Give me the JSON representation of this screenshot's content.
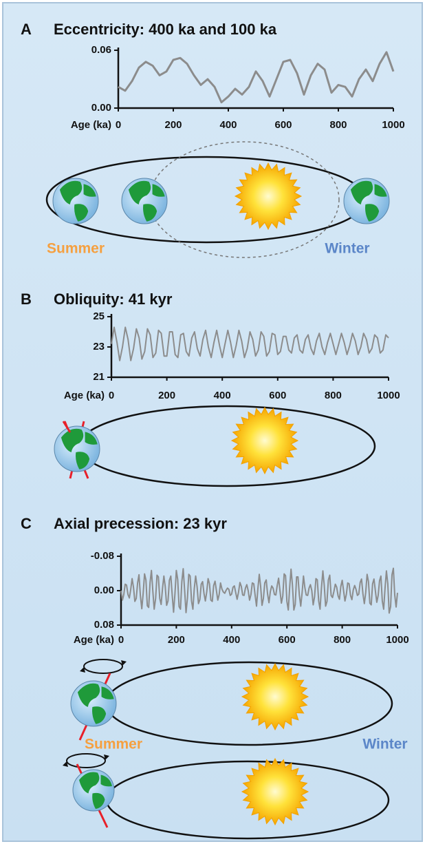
{
  "chart_data": [
    {
      "type": "line",
      "panel": "A",
      "title": "Eccentricity: 400 ka and 100 ka",
      "x_label": "Age (ka)",
      "color": "#8c8c8c",
      "xlim": [
        0,
        1000
      ],
      "xticks": [
        0,
        200,
        400,
        600,
        800,
        1000
      ],
      "ylim": [
        0,
        0.06
      ],
      "yticks": [
        {
          "value": 0,
          "label": "0.00"
        },
        0.06
      ],
      "annotations": [
        "Summer",
        "Winter"
      ],
      "x": [
        0,
        25,
        50,
        75,
        100,
        125,
        150,
        175,
        200,
        225,
        250,
        275,
        300,
        325,
        350,
        375,
        400,
        425,
        450,
        475,
        500,
        525,
        550,
        575,
        600,
        625,
        650,
        675,
        700,
        725,
        750,
        775,
        800,
        825,
        850,
        875,
        900,
        925,
        950,
        975,
        1000
      ],
      "values": [
        0.022,
        0.018,
        0.028,
        0.042,
        0.048,
        0.044,
        0.034,
        0.038,
        0.05,
        0.052,
        0.046,
        0.034,
        0.024,
        0.03,
        0.022,
        0.006,
        0.012,
        0.02,
        0.014,
        0.022,
        0.038,
        0.028,
        0.012,
        0.03,
        0.048,
        0.05,
        0.036,
        0.014,
        0.034,
        0.046,
        0.04,
        0.016,
        0.024,
        0.022,
        0.012,
        0.03,
        0.04,
        0.028,
        0.046,
        0.058,
        0.038
      ]
    },
    {
      "type": "line",
      "panel": "B",
      "title": "Obliquity: 41 kyr",
      "x_label": "Age (ka)",
      "color": "#8c8c8c",
      "xlim": [
        0,
        1000
      ],
      "xticks": [
        0,
        200,
        400,
        600,
        800,
        1000
      ],
      "ylim": [
        21,
        25
      ],
      "yticks": [
        21,
        23,
        25
      ],
      "x": [
        0,
        10,
        20,
        30,
        40,
        50,
        60,
        70,
        80,
        90,
        100,
        110,
        120,
        130,
        140,
        150,
        160,
        170,
        180,
        190,
        200,
        210,
        220,
        230,
        240,
        250,
        260,
        270,
        280,
        290,
        300,
        310,
        320,
        330,
        340,
        350,
        360,
        370,
        380,
        390,
        400,
        410,
        420,
        430,
        440,
        450,
        460,
        470,
        480,
        490,
        500,
        510,
        520,
        530,
        540,
        550,
        560,
        570,
        580,
        590,
        600,
        610,
        620,
        630,
        640,
        650,
        660,
        670,
        680,
        690,
        700,
        710,
        720,
        730,
        740,
        750,
        760,
        770,
        780,
        790,
        800,
        810,
        820,
        830,
        840,
        850,
        860,
        870,
        880,
        890,
        900,
        910,
        920,
        930,
        940,
        950,
        960,
        970,
        980,
        990,
        1000
      ],
      "values": [
        23.2,
        24.3,
        23.3,
        22.1,
        23.0,
        24.3,
        23.5,
        22.1,
        22.9,
        24.2,
        23.6,
        22.2,
        22.7,
        24.2,
        23.8,
        22.3,
        22.6,
        24.1,
        23.9,
        22.4,
        22.4,
        24.0,
        24.0,
        22.5,
        22.3,
        23.8,
        23.9,
        22.7,
        22.4,
        23.6,
        24.0,
        22.9,
        22.4,
        23.5,
        24.1,
        23.0,
        22.3,
        23.3,
        24.1,
        23.1,
        22.3,
        23.2,
        24.1,
        23.3,
        22.3,
        23.1,
        24.1,
        23.4,
        22.3,
        22.9,
        24.0,
        23.5,
        22.4,
        22.8,
        24.0,
        23.7,
        22.4,
        22.7,
        23.9,
        23.8,
        22.5,
        22.7,
        23.7,
        23.7,
        22.8,
        22.6,
        23.6,
        23.8,
        22.8,
        22.6,
        23.5,
        23.8,
        22.9,
        22.5,
        23.4,
        23.9,
        23.0,
        22.5,
        23.3,
        23.9,
        23.2,
        22.5,
        23.2,
        23.9,
        23.3,
        22.5,
        23.1,
        23.9,
        23.4,
        22.5,
        23.0,
        23.9,
        23.5,
        22.6,
        22.9,
        23.8,
        23.6,
        22.6,
        22.8,
        23.8,
        23.6
      ]
    },
    {
      "type": "line",
      "panel": "C",
      "title": "Axial precession: 23 kyr",
      "x_label": "Age (ka)",
      "color": "#8c8c8c",
      "xlim": [
        0,
        1000
      ],
      "xticks": [
        0,
        200,
        400,
        600,
        800,
        1000
      ],
      "ylim": [
        0.08,
        -0.08
      ],
      "yticks": [
        -0.08,
        {
          "value": 0,
          "label": "0.00"
        },
        0.08
      ],
      "annotations": [
        "Summer",
        "Winter"
      ],
      "x": [
        0,
        5,
        10,
        15,
        20,
        25,
        30,
        35,
        40,
        45,
        50,
        55,
        60,
        65,
        70,
        75,
        80,
        85,
        90,
        95,
        100,
        105,
        110,
        115,
        120,
        125,
        130,
        135,
        140,
        145,
        150,
        155,
        160,
        165,
        170,
        175,
        180,
        185,
        190,
        195,
        200,
        205,
        210,
        215,
        220,
        225,
        230,
        235,
        240,
        245,
        250,
        255,
        260,
        265,
        270,
        275,
        280,
        285,
        290,
        295,
        300,
        305,
        310,
        315,
        320,
        325,
        330,
        335,
        340,
        345,
        350,
        355,
        360,
        365,
        370,
        375,
        380,
        385,
        390,
        395,
        400,
        405,
        410,
        415,
        420,
        425,
        430,
        435,
        440,
        445,
        450,
        455,
        460,
        465,
        470,
        475,
        480,
        485,
        490,
        495,
        500,
        505,
        510,
        515,
        520,
        525,
        530,
        535,
        540,
        545,
        550,
        555,
        560,
        565,
        570,
        575,
        580,
        585,
        590,
        595,
        600,
        605,
        610,
        615,
        620,
        625,
        630,
        635,
        640,
        645,
        650,
        655,
        660,
        665,
        670,
        675,
        680,
        685,
        690,
        695,
        700,
        705,
        710,
        715,
        720,
        725,
        730,
        735,
        740,
        745,
        750,
        755,
        760,
        765,
        770,
        775,
        780,
        785,
        790,
        795,
        800,
        805,
        810,
        815,
        820,
        825,
        830,
        835,
        840,
        845,
        850,
        855,
        860,
        865,
        870,
        875,
        880,
        885,
        890,
        895,
        900,
        905,
        910,
        915,
        920,
        925,
        930,
        935,
        940,
        945,
        950,
        955,
        960,
        965,
        970,
        975,
        980,
        985,
        990,
        995,
        1000
      ],
      "values": [
        0,
        0.022,
        0.009,
        -0.015,
        -0.013,
        0.009,
        0.017,
        -0.003,
        -0.028,
        -0.008,
        0.025,
        0.018,
        -0.018,
        -0.037,
        0.011,
        0.042,
        0.006,
        -0.039,
        -0.025,
        0.035,
        0.039,
        -0.019,
        -0.047,
        0,
        0.043,
        0.018,
        -0.036,
        -0.032,
        0.018,
        0.032,
        -0.005,
        -0.034,
        -0.009,
        0.034,
        0.024,
        -0.024,
        -0.034,
        0.01,
        0.05,
        0.007,
        -0.047,
        -0.026,
        0.037,
        0.043,
        -0.021,
        -0.051,
        0,
        0.051,
        0.018,
        -0.038,
        -0.034,
        0.024,
        0.043,
        -0.005,
        -0.034,
        -0.009,
        0.03,
        0.021,
        -0.015,
        -0.021,
        0.006,
        0.024,
        0.003,
        -0.028,
        -0.016,
        0.022,
        0.025,
        -0.012,
        -0.022,
        0,
        0.022,
        0.009,
        -0.018,
        -0.004,
        0.003,
        0.006,
        -0.001,
        -0.006,
        -0.003,
        0.011,
        0.008,
        -0.008,
        -0.011,
        0.005,
        0.02,
        0.003,
        -0.019,
        -0.01,
        0.01,
        0.011,
        -0.006,
        -0.014,
        0,
        0.022,
        0.009,
        -0.018,
        -0.016,
        0.011,
        0.036,
        -0.005,
        -0.038,
        -0.01,
        0.034,
        0.018,
        -0.018,
        -0.025,
        0.008,
        0.028,
        0.002,
        -0.011,
        -0.006,
        0.009,
        0.01,
        -0.012,
        -0.029,
        0,
        0.029,
        0.012,
        -0.039,
        -0.035,
        0.025,
        0.045,
        -0.007,
        -0.05,
        -0.014,
        0.045,
        0.032,
        -0.032,
        -0.032,
        0.01,
        0.036,
        0.005,
        -0.034,
        -0.007,
        0.01,
        0.011,
        -0.006,
        -0.014,
        0,
        0.033,
        0.014,
        -0.028,
        -0.025,
        0.024,
        0.043,
        -0.006,
        -0.046,
        -0.012,
        0.036,
        0.025,
        -0.025,
        -0.036,
        0.011,
        0.016,
        0.002,
        -0.015,
        -0.008,
        0.012,
        0.02,
        -0.01,
        -0.024,
        0,
        0.024,
        0.009,
        -0.018,
        -0.016,
        0.011,
        0.021,
        -0.002,
        -0.012,
        -0.003,
        0.011,
        0.008,
        -0.019,
        -0.027,
        0.008,
        0.03,
        0.004,
        -0.038,
        -0.021,
        0.029,
        0.033,
        -0.016,
        -0.027,
        0,
        0.027,
        0.011,
        -0.023,
        -0.034,
        0.024,
        0.043,
        -0.006,
        -0.046,
        -0.016,
        0.052,
        0.037,
        -0.037,
        -0.052,
        0.01,
        0.038,
        0.005
      ]
    }
  ]
}
